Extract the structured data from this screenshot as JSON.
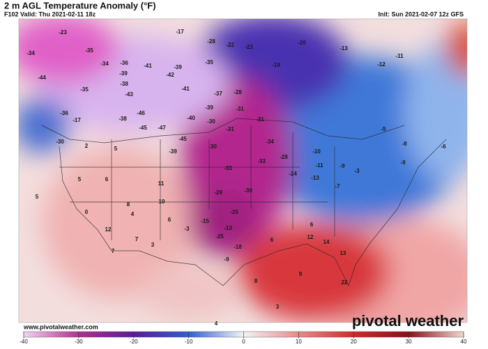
{
  "header": {
    "title": "2 m AGL Temperature Anomaly (°F)",
    "valid": "F102 Valid: Thu 2021-02-11 18z",
    "init": "Init: Sun 2021-02-07 12z GFS"
  },
  "map": {
    "labels": [
      -23,
      -17,
      -34,
      -35,
      -34,
      -36,
      -41,
      -39,
      -44,
      -39,
      -42,
      -35,
      -35,
      -38,
      -43,
      -41,
      -37,
      -28,
      -22,
      -28,
      -23,
      -20,
      -19,
      -13,
      -12,
      -11,
      -46,
      -47,
      -45,
      -40,
      -39,
      -30,
      -31,
      -31,
      -31,
      -38,
      -36,
      -17,
      -39,
      -45,
      -30,
      -33,
      -33,
      -28,
      -24,
      -34,
      -30,
      -29,
      -25,
      -13,
      -15,
      -25,
      -18,
      -9,
      -3,
      -10,
      -11,
      -13,
      -7,
      -9,
      -3,
      -5,
      -8,
      -9,
      -6,
      6,
      12,
      14,
      13,
      6,
      8,
      9,
      22,
      5,
      6,
      8,
      11,
      10,
      4,
      6,
      12,
      7,
      3,
      0,
      5,
      2,
      5,
      -30,
      7,
      4,
      3
    ]
  },
  "colorbar": {
    "ticks": [
      -40,
      -30,
      -20,
      -10,
      0,
      10,
      20,
      30,
      40
    ],
    "colors": [
      "#f6d4f2",
      "#b0308f",
      "#5a1a9a",
      "#2f5fd0",
      "#f4f4f6",
      "#e88a8a",
      "#d42a2a",
      "#8a0f1a",
      "#f0d8d0"
    ]
  },
  "footer": {
    "website": "www.pivotalweather.com",
    "logo": "pivotal weather"
  }
}
